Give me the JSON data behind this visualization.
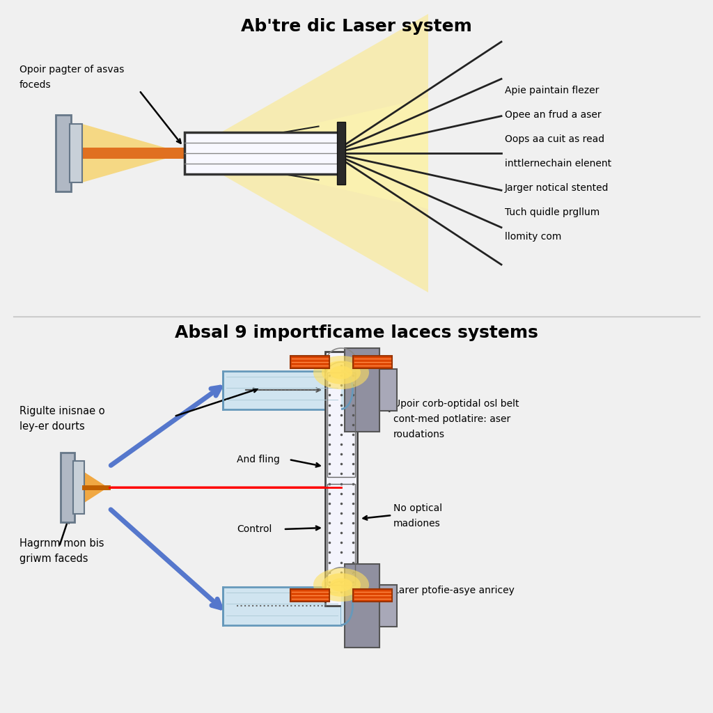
{
  "title_top": "Ab'tre dic Laser system",
  "title_bottom": "Absal 9 importficame lacecs systems",
  "bg_color": "#f0f0f0",
  "top_labels_left": [
    "Opoir pagter of asvas",
    "foceds"
  ],
  "top_labels_right": [
    "Apie paintain flezer",
    "Opee an frud a aser",
    "Oops aa cuit as read",
    "inttlernechain elenent",
    "Jarger notical stented",
    "Tuch quidle prgllum",
    "llomity com"
  ],
  "bottom_left_label1": [
    "Rigulte inisnae o",
    "ley-er dourts"
  ],
  "bottom_left_label2": [
    "Hagrnm mon bis",
    "griwm faceds"
  ],
  "bottom_right_label1": [
    "Upoir corb-optidal osl belt",
    "cont-med potlatire: aser",
    "roudations"
  ],
  "bottom_right_label2": [
    "No optical",
    "madiones"
  ],
  "bottom_right_label3": "Larer ptofie-asye anricey",
  "bottom_mid_label1": "And fling",
  "bottom_mid_label2": "Control"
}
